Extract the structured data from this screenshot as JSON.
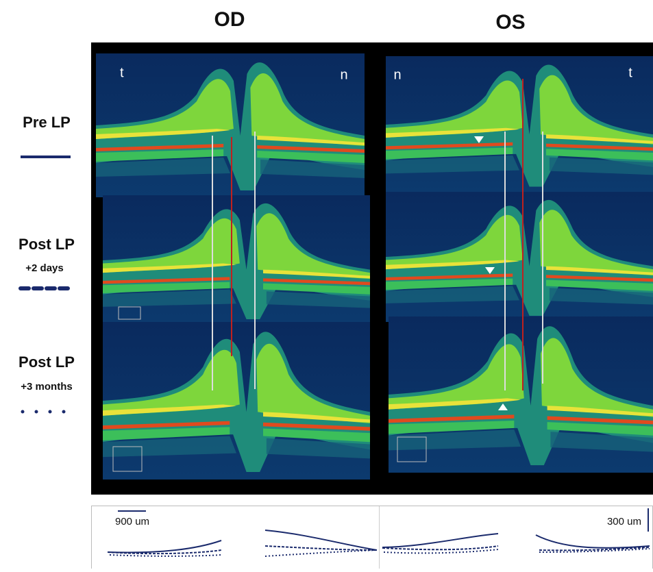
{
  "columns": [
    "OD",
    "OS"
  ],
  "rows": [
    {
      "label": "Pre LP"
    },
    {
      "label": "Post LP",
      "sublabel": "+2 days"
    },
    {
      "label": "Post LP",
      "sublabel": "+3 months"
    }
  ],
  "orientation": {
    "od": [
      "t",
      "n"
    ],
    "os": [
      "n",
      "t"
    ]
  },
  "scale_bars": {
    "horizontal": "900 um",
    "vertical": "300 um"
  }
}
